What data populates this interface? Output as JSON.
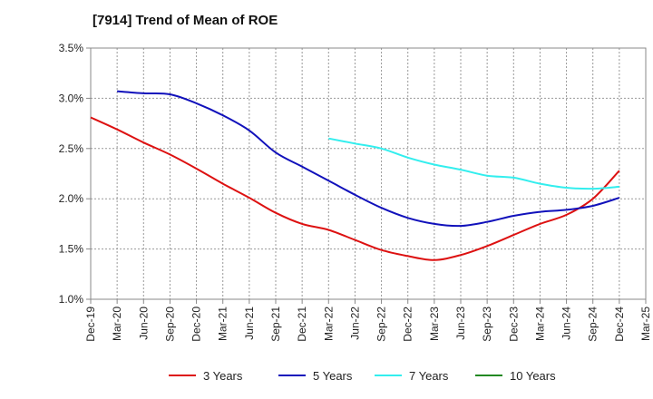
{
  "chart_data": {
    "type": "line",
    "title": "[7914]  Trend of Mean of ROE",
    "xlabel": "",
    "ylabel": "",
    "x_ticks": [
      "Dec-19",
      "Mar-20",
      "Jun-20",
      "Sep-20",
      "Dec-20",
      "Mar-21",
      "Jun-21",
      "Sep-21",
      "Dec-21",
      "Mar-22",
      "Jun-22",
      "Sep-22",
      "Dec-22",
      "Mar-23",
      "Jun-23",
      "Sep-23",
      "Dec-23",
      "Mar-24",
      "Jun-24",
      "Sep-24",
      "Dec-24",
      "Mar-25"
    ],
    "y_ticks": [
      "1.0%",
      "1.5%",
      "2.0%",
      "2.5%",
      "3.0%",
      "3.5%"
    ],
    "ylim": [
      1.0,
      3.5
    ],
    "grid": "vertical dashed",
    "legend_position": "bottom",
    "series": [
      {
        "name": "3 Years",
        "color": "#dd1111",
        "points": [
          [
            "Dec-19",
            2.81
          ],
          [
            "Mar-20",
            2.69
          ],
          [
            "Jun-20",
            2.56
          ],
          [
            "Sep-20",
            2.44
          ],
          [
            "Dec-20",
            2.3
          ],
          [
            "Mar-21",
            2.15
          ],
          [
            "Jun-21",
            2.01
          ],
          [
            "Sep-21",
            1.86
          ],
          [
            "Dec-21",
            1.75
          ],
          [
            "Mar-22",
            1.69
          ],
          [
            "Jun-22",
            1.59
          ],
          [
            "Sep-22",
            1.49
          ],
          [
            "Dec-22",
            1.43
          ],
          [
            "Mar-23",
            1.39
          ],
          [
            "Jun-23",
            1.44
          ],
          [
            "Sep-23",
            1.53
          ],
          [
            "Dec-23",
            1.64
          ],
          [
            "Mar-24",
            1.75
          ],
          [
            "Jun-24",
            1.84
          ],
          [
            "Sep-24",
            2.0
          ],
          [
            "Dec-24",
            2.28
          ]
        ]
      },
      {
        "name": "5 Years",
        "color": "#1111bb",
        "points": [
          [
            "Mar-20",
            3.07
          ],
          [
            "Jun-20",
            3.05
          ],
          [
            "Sep-20",
            3.04
          ],
          [
            "Dec-20",
            2.95
          ],
          [
            "Mar-21",
            2.83
          ],
          [
            "Jun-21",
            2.68
          ],
          [
            "Sep-21",
            2.46
          ],
          [
            "Dec-21",
            2.32
          ],
          [
            "Mar-22",
            2.18
          ],
          [
            "Jun-22",
            2.04
          ],
          [
            "Sep-22",
            1.91
          ],
          [
            "Dec-22",
            1.81
          ],
          [
            "Mar-23",
            1.75
          ],
          [
            "Jun-23",
            1.73
          ],
          [
            "Sep-23",
            1.77
          ],
          [
            "Dec-23",
            1.83
          ],
          [
            "Mar-24",
            1.87
          ],
          [
            "Jun-24",
            1.89
          ],
          [
            "Sep-24",
            1.93
          ],
          [
            "Dec-24",
            2.01
          ]
        ]
      },
      {
        "name": "7 Years",
        "color": "#33eeee",
        "points": [
          [
            "Mar-22",
            2.6
          ],
          [
            "Jun-22",
            2.55
          ],
          [
            "Sep-22",
            2.5
          ],
          [
            "Dec-22",
            2.41
          ],
          [
            "Mar-23",
            2.34
          ],
          [
            "Jun-23",
            2.29
          ],
          [
            "Sep-23",
            2.23
          ],
          [
            "Dec-23",
            2.21
          ],
          [
            "Mar-24",
            2.15
          ],
          [
            "Jun-24",
            2.11
          ],
          [
            "Sep-24",
            2.1
          ],
          [
            "Dec-24",
            2.12
          ]
        ]
      },
      {
        "name": "10 Years",
        "color": "#228822",
        "points": []
      }
    ]
  }
}
